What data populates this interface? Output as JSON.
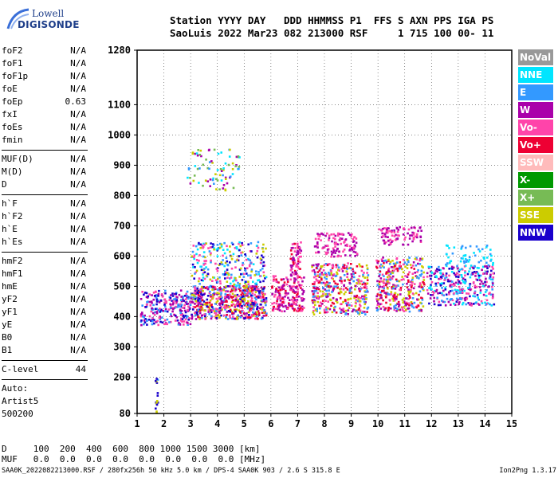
{
  "logo": {
    "line1": "Lowell",
    "line2": "DIGISONDE"
  },
  "header": {
    "row1": "Station YYYY DAY   DDD HHMMSS P1  FFS S AXN PPS IGA PS",
    "row2": "SaoLuis 2022 Mar23 082 213000 RSF     1 715 100 00- 11"
  },
  "params": {
    "group1": [
      {
        "label": "foF2",
        "value": "N/A"
      },
      {
        "label": "foF1",
        "value": "N/A"
      },
      {
        "label": "foF1p",
        "value": "N/A"
      },
      {
        "label": "foE",
        "value": "N/A"
      },
      {
        "label": "foEp",
        "value": "0.63"
      },
      {
        "label": "fxI",
        "value": "N/A"
      },
      {
        "label": "foEs",
        "value": "N/A"
      },
      {
        "label": "fmin",
        "value": "N/A"
      }
    ],
    "group2": [
      {
        "label": "MUF(D)",
        "value": "N/A"
      },
      {
        "label": "M(D)",
        "value": "N/A"
      },
      {
        "label": "D",
        "value": "N/A"
      }
    ],
    "group3": [
      {
        "label": "h`F",
        "value": "N/A"
      },
      {
        "label": "h`F2",
        "value": "N/A"
      },
      {
        "label": "h`E",
        "value": "N/A"
      },
      {
        "label": "h`Es",
        "value": "N/A"
      }
    ],
    "group4": [
      {
        "label": "hmF2",
        "value": "N/A"
      },
      {
        "label": "hmF1",
        "value": "N/A"
      },
      {
        "label": "hmE",
        "value": "N/A"
      },
      {
        "label": "yF2",
        "value": "N/A"
      },
      {
        "label": "yF1",
        "value": "N/A"
      },
      {
        "label": "yE",
        "value": "N/A"
      },
      {
        "label": "B0",
        "value": "N/A"
      },
      {
        "label": "B1",
        "value": "N/A"
      }
    ],
    "group5": [
      {
        "label": "C-level",
        "value": "44"
      }
    ]
  },
  "auto": {
    "line1": "Auto:",
    "line2": "Artist5",
    "line3": "500200"
  },
  "bottom": {
    "d_line": "D     100  200  400  600  800 1000 1500 3000 [km]",
    "muf_line": "MUF   0.0  0.0  0.0  0.0  0.0  0.0  0.0  0.0 [MHz]"
  },
  "footer": {
    "left": "SAA0K_2022082213000.RSF / 280fx256h 50 kHz 5.0 km / DPS-4 SAA0K 903 / 2.6 S 315.8 E",
    "right": "Ion2Png 1.3.17"
  },
  "legend": [
    {
      "label": "NoVal",
      "color": "#999999"
    },
    {
      "label": "NNE",
      "color": "#00e5ff"
    },
    {
      "label": "E",
      "color": "#3399ff"
    },
    {
      "label": "W",
      "color": "#aa00aa"
    },
    {
      "label": "Vo-",
      "color": "#ff44aa"
    },
    {
      "label": "Vo+",
      "color": "#ee0033"
    },
    {
      "label": "SSW",
      "color": "#ffbbbb"
    },
    {
      "label": "X-",
      "color": "#009900"
    },
    {
      "label": "X+",
      "color": "#77bb55"
    },
    {
      "label": "SSE",
      "color": "#cccc00"
    },
    {
      "label": "NNW",
      "color": "#1a00cc"
    }
  ],
  "chart_data": {
    "type": "scatter",
    "xlim": [
      1,
      15
    ],
    "ylim": [
      80,
      1280
    ],
    "x_ticks": [
      1,
      2,
      3,
      4,
      5,
      6,
      7,
      8,
      9,
      10,
      11,
      12,
      13,
      14,
      15
    ],
    "y_ticks": [
      80,
      200,
      300,
      400,
      500,
      600,
      700,
      800,
      900,
      1000,
      1100,
      1280
    ],
    "x_tick_labels": [
      "1",
      "2",
      "3",
      "4",
      "5",
      "6",
      "7",
      "8",
      "9",
      "10",
      "11",
      "12",
      "13",
      "14",
      "15"
    ],
    "y_tick_labels": [
      "80",
      "200",
      "300",
      "400",
      "500",
      "600",
      "700",
      "800",
      "900",
      "1000",
      "1100",
      "1280"
    ],
    "grid": true,
    "clusters": [
      {
        "f": [
          1.1,
          3.0
        ],
        "h": [
          375,
          490
        ],
        "colors": [
          "#1a00cc",
          "#aa00aa",
          "#ff44aa",
          "#3399ff"
        ],
        "n": 260
      },
      {
        "f": [
          3.0,
          5.8
        ],
        "h": [
          395,
          505
        ],
        "colors": [
          "#ff44aa",
          "#aa00aa",
          "#1a00cc",
          "#ee0033",
          "#3399ff",
          "#cccc00"
        ],
        "n": 620
      },
      {
        "f": [
          3.0,
          5.8
        ],
        "h": [
          505,
          650
        ],
        "colors": [
          "#3399ff",
          "#00e5ff",
          "#1a00cc",
          "#cccc00",
          "#ff44aa"
        ],
        "n": 260
      },
      {
        "f": [
          2.8,
          4.8
        ],
        "h": [
          820,
          955
        ],
        "colors": [
          "#aa00aa",
          "#cccc00",
          "#3399ff",
          "#00e5ff",
          "#77bb55"
        ],
        "n": 80
      },
      {
        "f": [
          6.0,
          7.2
        ],
        "h": [
          420,
          540
        ],
        "colors": [
          "#ff44aa",
          "#ee0033",
          "#aa00aa"
        ],
        "n": 190
      },
      {
        "f": [
          6.7,
          7.1
        ],
        "h": [
          540,
          650
        ],
        "colors": [
          "#ff44aa",
          "#aa00aa",
          "#ee0033"
        ],
        "n": 60
      },
      {
        "f": [
          7.5,
          9.6
        ],
        "h": [
          410,
          580
        ],
        "colors": [
          "#ff44aa",
          "#ee0033",
          "#aa00aa",
          "#cccc00",
          "#3399ff"
        ],
        "n": 400
      },
      {
        "f": [
          7.6,
          9.2
        ],
        "h": [
          600,
          680
        ],
        "colors": [
          "#aa00aa",
          "#ff44aa"
        ],
        "n": 120
      },
      {
        "f": [
          9.9,
          11.7
        ],
        "h": [
          420,
          600
        ],
        "colors": [
          "#ff44aa",
          "#ee0033",
          "#aa00aa",
          "#3399ff",
          "#cccc00"
        ],
        "n": 360
      },
      {
        "f": [
          10.0,
          11.6
        ],
        "h": [
          640,
          700
        ],
        "colors": [
          "#aa00aa",
          "#ff44aa"
        ],
        "n": 90
      },
      {
        "f": [
          11.8,
          14.3
        ],
        "h": [
          440,
          570
        ],
        "colors": [
          "#3399ff",
          "#00e5ff",
          "#ff44aa",
          "#aa00aa",
          "#1a00cc"
        ],
        "n": 320
      },
      {
        "f": [
          12.5,
          14.3
        ],
        "h": [
          570,
          640
        ],
        "colors": [
          "#00e5ff",
          "#3399ff"
        ],
        "n": 60
      },
      {
        "f": [
          1.65,
          1.75
        ],
        "h": [
          82,
          225
        ],
        "colors": [
          "#1a00cc",
          "#3399ff",
          "#cccc00"
        ],
        "n": 16
      }
    ]
  }
}
